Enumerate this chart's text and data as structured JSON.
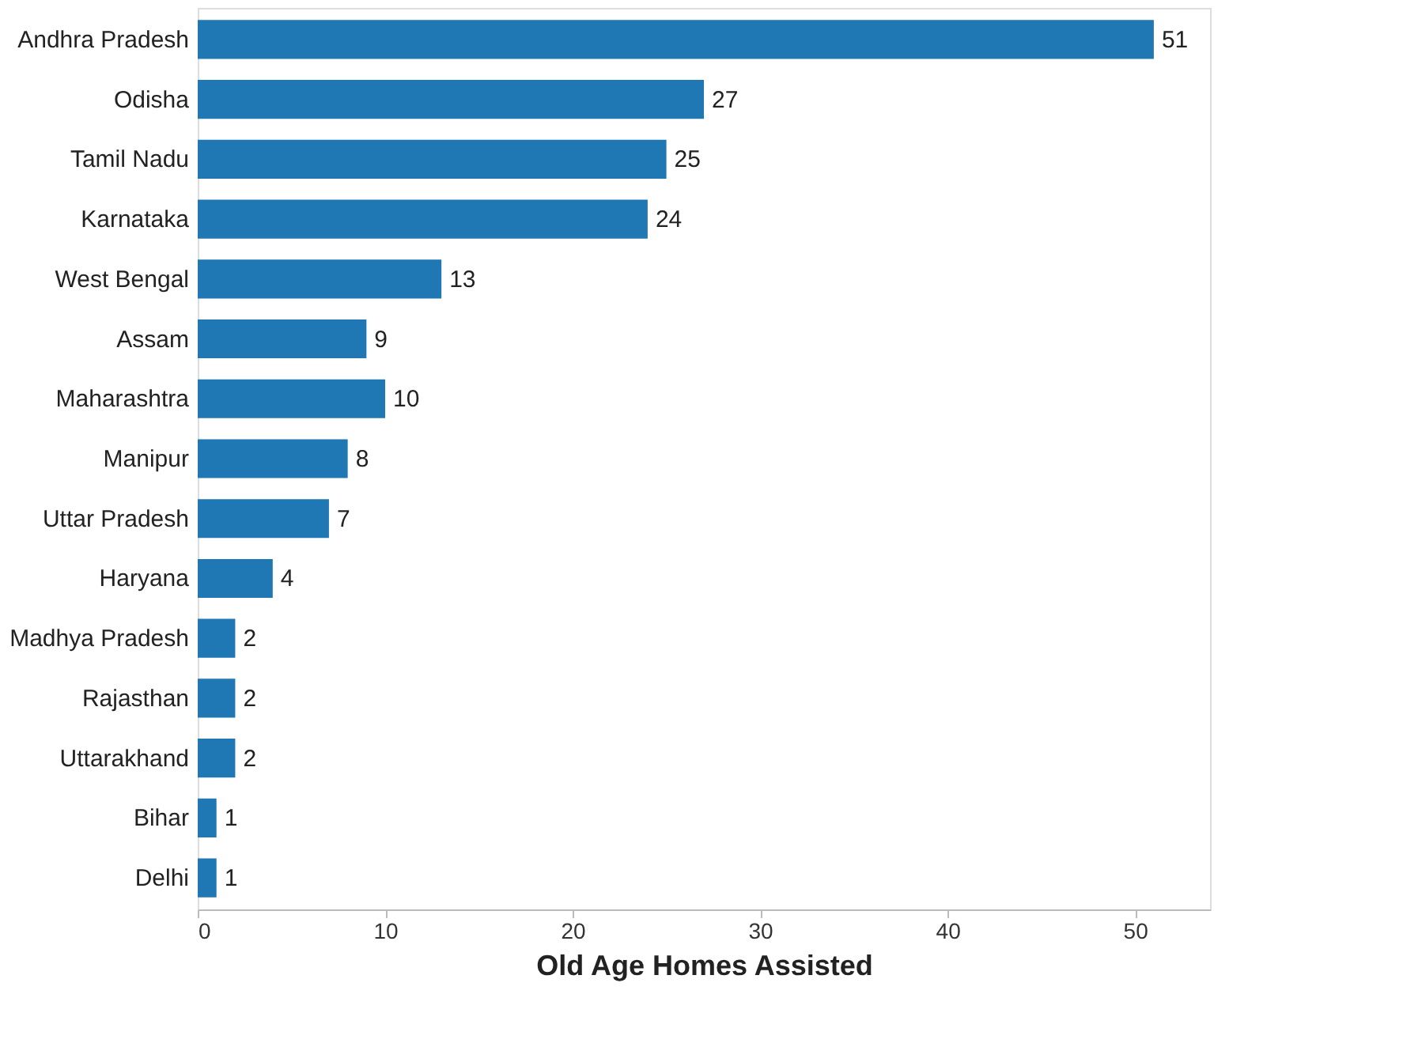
{
  "chart_data": {
    "type": "bar",
    "orientation": "horizontal",
    "xlabel": "Old Age Homes Assisted",
    "categories": [
      "Andhra Pradesh",
      "Odisha",
      "Tamil Nadu",
      "Karnataka",
      "West Bengal",
      "Assam",
      "Maharashtra",
      "Manipur",
      "Uttar Pradesh",
      "Haryana",
      "Madhya Pradesh",
      "Rajasthan",
      "Uttarakhand",
      "Bihar",
      "Delhi"
    ],
    "values": [
      51,
      27,
      25,
      24,
      13,
      9,
      10,
      8,
      7,
      4,
      2,
      2,
      2,
      1,
      1
    ],
    "color": "#1f77b4",
    "xlim": [
      0,
      54
    ],
    "xticks": [
      0,
      10,
      20,
      30,
      40,
      50
    ],
    "grid": false,
    "data_labels": true
  }
}
